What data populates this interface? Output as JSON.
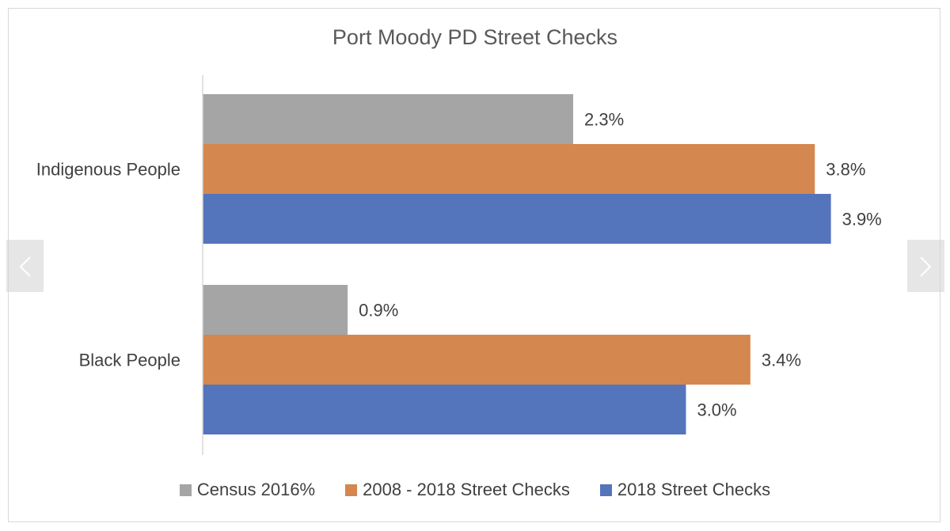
{
  "chart_data": {
    "type": "bar",
    "orientation": "horizontal",
    "title": "Port Moody PD Street Checks",
    "categories": [
      "Indigenous People",
      "Black People"
    ],
    "series": [
      {
        "name": "Census 2016%",
        "values": [
          2.3,
          0.9
        ],
        "labels": [
          "2.3%",
          "0.9%"
        ],
        "color": "#a5a5a5"
      },
      {
        "name": "2008 - 2018 Street Checks",
        "values": [
          3.8,
          3.4
        ],
        "labels": [
          "3.8%",
          "3.4%"
        ],
        "color": "#d4874f"
      },
      {
        "name": "2018 Street Checks",
        "values": [
          3.9,
          3.0
        ],
        "labels": [
          "3.9%",
          "3.0%"
        ],
        "color": "#5474bc"
      }
    ],
    "xlim": [
      0,
      4.3
    ],
    "grid": false,
    "legend_position": "bottom"
  },
  "navigation": {
    "prev_icon": "chevron-left-icon",
    "next_icon": "chevron-right-icon"
  }
}
